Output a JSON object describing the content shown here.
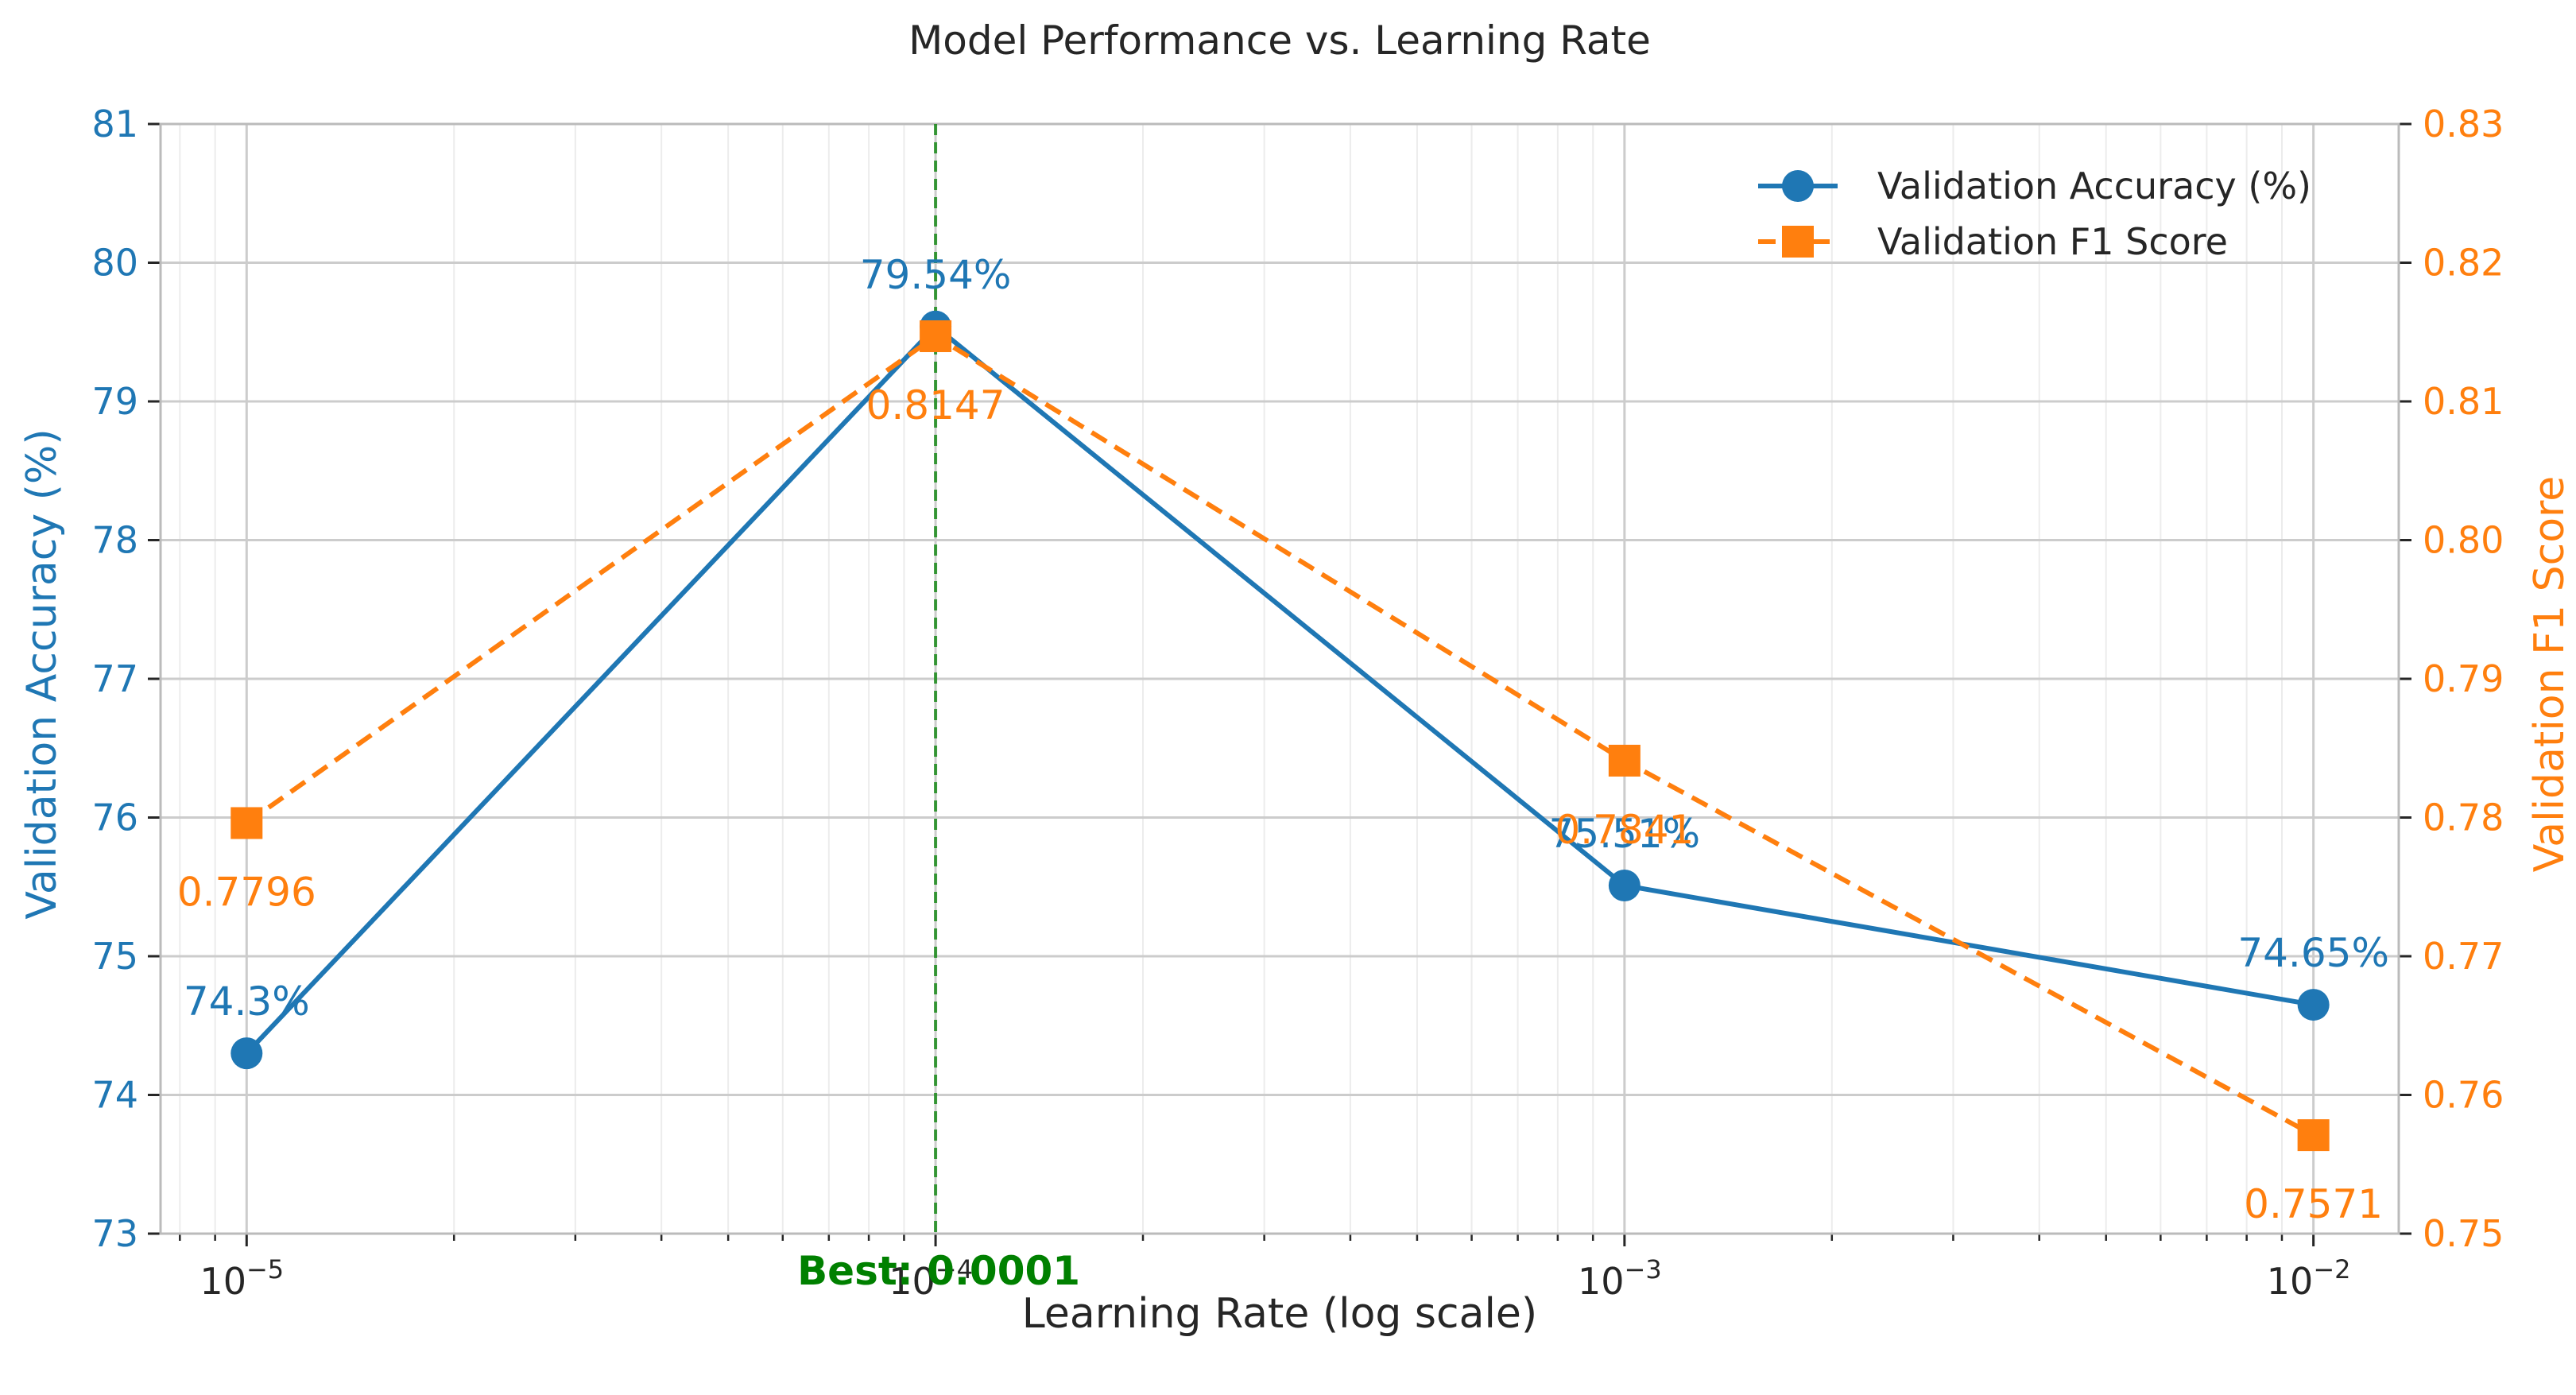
{
  "chart_data": {
    "type": "line",
    "title": "Model Performance vs. Learning Rate",
    "xlabel": "Learning Rate (log scale)",
    "x_scale": "log",
    "x": [
      1e-05,
      0.0001,
      0.001,
      0.01
    ],
    "x_ticks": [
      {
        "base": "10",
        "exp": "−5"
      },
      {
        "base": "10",
        "exp": "−4"
      },
      {
        "base": "10",
        "exp": "−3"
      },
      {
        "base": "10",
        "exp": "−2"
      }
    ],
    "xlim": [
      7.5e-06,
      0.0133
    ],
    "left_axis": {
      "label": "Validation Accuracy (%)",
      "ylim": [
        73,
        81
      ],
      "ticks": [
        "73",
        "74",
        "75",
        "76",
        "77",
        "78",
        "79",
        "80",
        "81"
      ],
      "color": "#1f77b4"
    },
    "right_axis": {
      "label": "Validation F1 Score",
      "ylim": [
        0.75,
        0.83
      ],
      "ticks": [
        "0.75",
        "0.76",
        "0.77",
        "0.78",
        "0.79",
        "0.80",
        "0.81",
        "0.82",
        "0.83"
      ],
      "color": "#ff7f0e"
    },
    "series": [
      {
        "name": "Validation Accuracy (%)",
        "axis": "left",
        "values": [
          74.3,
          79.54,
          75.51,
          74.65
        ],
        "labels": [
          "74.3%",
          "79.54%",
          "75.51%",
          "74.65%"
        ],
        "color": "#1f77b4",
        "marker": "circle",
        "line": "solid"
      },
      {
        "name": "Validation F1 Score",
        "axis": "right",
        "values": [
          0.7796,
          0.8147,
          0.7841,
          0.7571
        ],
        "labels": [
          "0.7796",
          "0.8147",
          "0.7841",
          "0.7571"
        ],
        "color": "#ff7f0e",
        "marker": "square",
        "line": "dashed"
      }
    ],
    "best": {
      "x": 0.0001,
      "label": "Best: 0.0001",
      "color": "#008000"
    },
    "grid": true,
    "legend_position": "top-right"
  }
}
